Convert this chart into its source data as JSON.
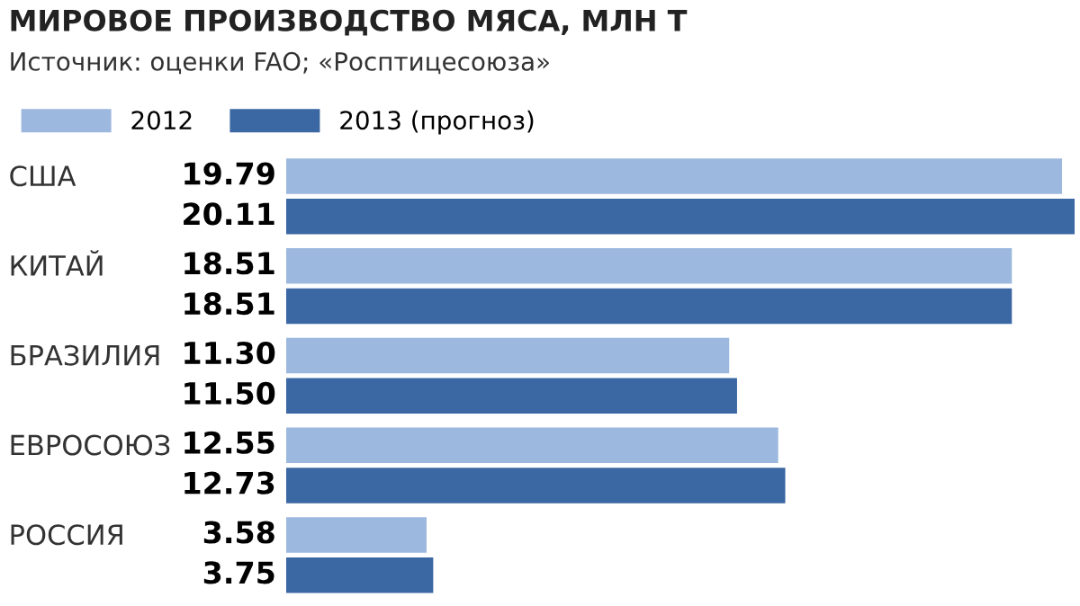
{
  "chart_data": {
    "type": "bar",
    "orientation": "horizontal",
    "title": "МИРОВОЕ ПРОИЗВОДСТВО МЯСА, МЛН Т",
    "subtitle": "Источник: оценки FAO; «Росптицесоюза»",
    "categories": [
      "США",
      "КИТАЙ",
      "БРАЗИЛИЯ",
      "ЕВРОСОЮЗ",
      "РОССИЯ"
    ],
    "series": [
      {
        "name": "2012",
        "color": "#9db8de",
        "values": [
          19.79,
          18.51,
          11.3,
          12.55,
          3.58
        ],
        "value_labels": [
          "19.79",
          "18.51",
          "11.30",
          "12.55",
          "3.58"
        ]
      },
      {
        "name": "2013 (прогноз)",
        "color": "#3b67a2",
        "values": [
          20.11,
          18.51,
          11.5,
          12.73,
          3.75
        ],
        "value_labels": [
          "20.11",
          "18.51",
          "11.50",
          "12.73",
          "3.75"
        ]
      }
    ],
    "legend": "top left"
  }
}
